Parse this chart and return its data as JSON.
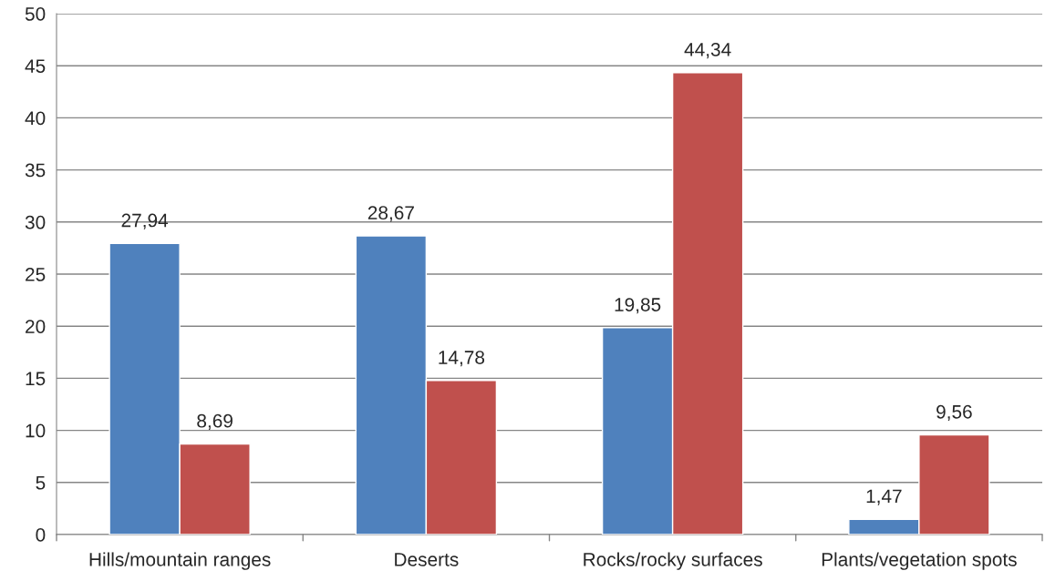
{
  "chart_data": {
    "type": "bar",
    "categories": [
      "Hills/mountain ranges",
      "Deserts",
      "Rocks/rocky surfaces",
      "Plants/vegetation spots"
    ],
    "series": [
      {
        "color": "#4f81bd",
        "values": [
          27.94,
          28.67,
          19.85,
          1.47
        ],
        "value_labels": [
          "27,94",
          "28,67",
          "19,85",
          "1,47"
        ]
      },
      {
        "color": "#c0504d",
        "values": [
          8.69,
          14.78,
          44.34,
          9.56
        ],
        "value_labels": [
          "8,69",
          "14,78",
          "44,34",
          "9,56"
        ]
      }
    ],
    "ylim": [
      0,
      50
    ],
    "yticks": [
      0,
      5,
      10,
      15,
      20,
      25,
      30,
      35,
      40,
      45,
      50
    ],
    "grid": "y",
    "legend": false
  }
}
